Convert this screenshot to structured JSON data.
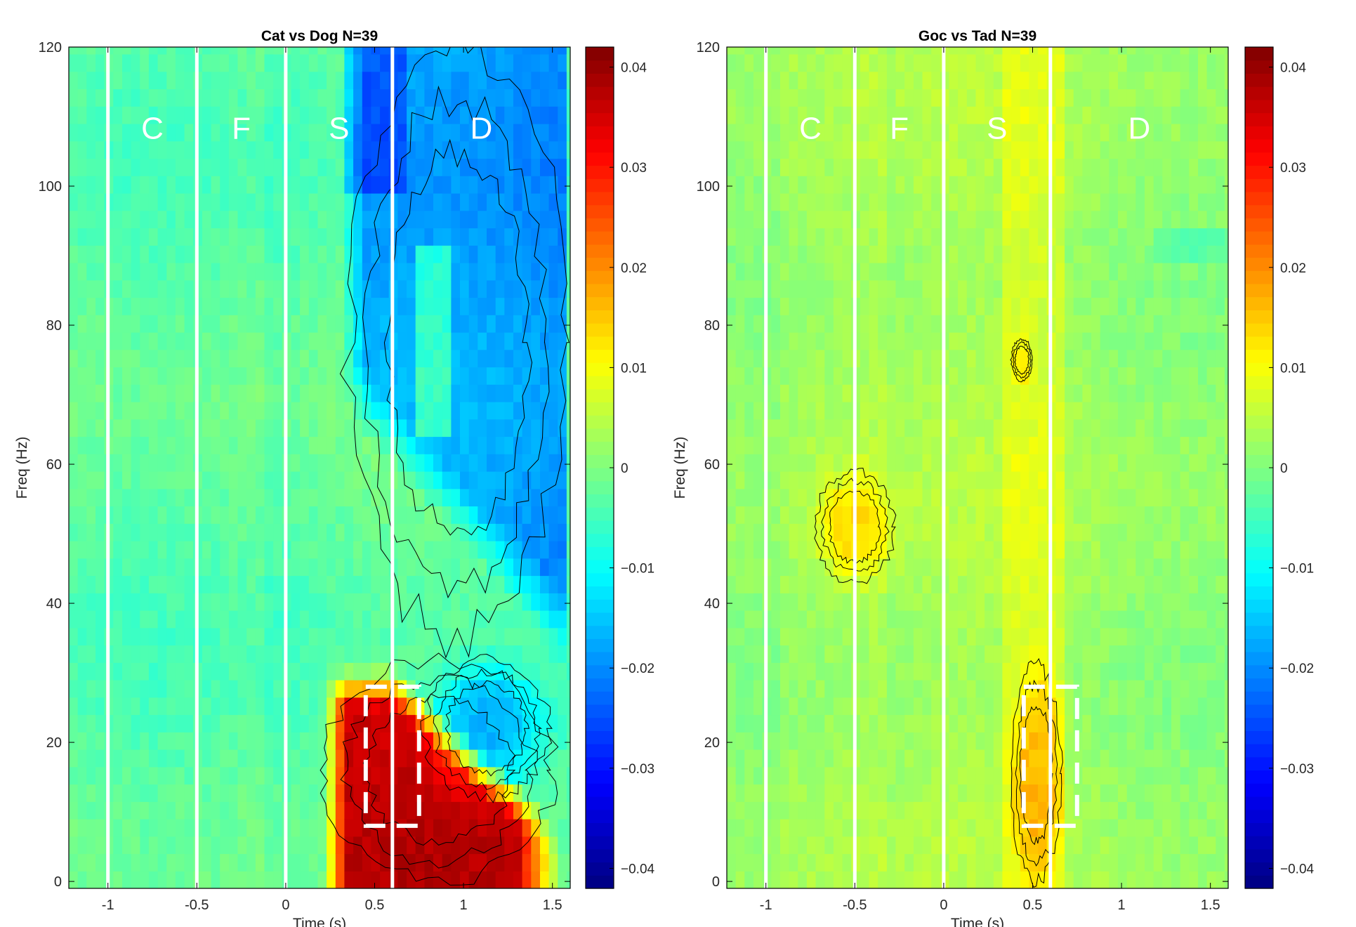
{
  "chart_data": [
    {
      "type": "heatmap",
      "title": "Cat vs Dog N=39",
      "xlabel": "Time (s)",
      "ylabel": "Freq (Hz)",
      "xlim": [
        -1.22,
        1.6
      ],
      "ylim": [
        -1,
        120
      ],
      "xticks": [
        -1,
        -0.5,
        0,
        0.5,
        1,
        1.5
      ],
      "xtick_labels": [
        "-1",
        "-0.5",
        "0",
        "0.5",
        "1",
        "1.5"
      ],
      "yticks": [
        0,
        20,
        40,
        60,
        80,
        100,
        120
      ],
      "ytick_labels": [
        "0",
        "20",
        "40",
        "60",
        "80",
        "100",
        "120"
      ],
      "vlines": [
        -1,
        -0.5,
        0,
        0.6
      ],
      "epoch_labels": [
        {
          "text": "C",
          "x": -0.75,
          "y": 108
        },
        {
          "text": "F",
          "x": -0.25,
          "y": 108
        },
        {
          "text": "S",
          "x": 0.3,
          "y": 108
        },
        {
          "text": "D",
          "x": 1.1,
          "y": 108
        }
      ],
      "roi_box": {
        "t0": 0.45,
        "t1": 0.75,
        "f0": 8,
        "f1": 28
      },
      "clusters": [
        {
          "label": "high-gamma decrease",
          "t0": 0.35,
          "t1": 1.58,
          "f0": 35,
          "f1": 120,
          "peak": -0.02
        },
        {
          "label": "beta decrease",
          "t0": 0.78,
          "t1": 1.48,
          "f0": 12,
          "f1": 32,
          "peak": -0.016
        },
        {
          "label": "low-frequency increase",
          "t0": 0.22,
          "t1": 1.5,
          "f0": 0,
          "f1": 32,
          "peak": 0.04
        }
      ],
      "colorbar": {
        "min": -0.042,
        "max": 0.042,
        "ticks": [
          0.04,
          0.03,
          0.02,
          0.01,
          0,
          -0.01,
          -0.02,
          -0.03,
          -0.04
        ],
        "tick_labels": [
          "0.04",
          "0.03",
          "0.02",
          "0.01",
          "0",
          "−0.01",
          "−0.02",
          "−0.03",
          "−0.04"
        ]
      }
    },
    {
      "type": "heatmap",
      "title": "Goc vs Tad N=39",
      "xlabel": "Time (s)",
      "ylabel": "Freq (Hz)",
      "xlim": [
        -1.22,
        1.6
      ],
      "ylim": [
        -1,
        120
      ],
      "xticks": [
        -1,
        -0.5,
        0,
        0.5,
        1,
        1.5
      ],
      "xtick_labels": [
        "-1",
        "-0.5",
        "0",
        "0.5",
        "1",
        "1.5"
      ],
      "yticks": [
        0,
        20,
        40,
        60,
        80,
        100,
        120
      ],
      "ytick_labels": [
        "0",
        "20",
        "40",
        "60",
        "80",
        "100",
        "120"
      ],
      "vlines": [
        -1,
        -0.5,
        0,
        0.6
      ],
      "epoch_labels": [
        {
          "text": "C",
          "x": -0.75,
          "y": 108
        },
        {
          "text": "F",
          "x": -0.25,
          "y": 108
        },
        {
          "text": "S",
          "x": 0.3,
          "y": 108
        },
        {
          "text": "D",
          "x": 1.1,
          "y": 108
        }
      ],
      "roi_box": {
        "t0": 0.45,
        "t1": 0.75,
        "f0": 8,
        "f1": 28
      },
      "clusters": [
        {
          "label": "gamma increase",
          "t0": -0.72,
          "t1": -0.28,
          "f0": 43,
          "f1": 59,
          "peak": 0.011
        },
        {
          "label": "beta increase",
          "t0": 0.38,
          "t1": 0.66,
          "f0": 0,
          "f1": 31,
          "peak": 0.01
        },
        {
          "label": "small increase",
          "t0": 0.38,
          "t1": 0.5,
          "f0": 72,
          "f1": 78,
          "peak": 0.008
        }
      ],
      "colorbar": {
        "min": -0.042,
        "max": 0.042,
        "ticks": [
          0.04,
          0.03,
          0.02,
          0.01,
          0,
          -0.01,
          -0.02,
          -0.03,
          -0.04
        ],
        "tick_labels": [
          "0.04",
          "0.03",
          "0.02",
          "0.01",
          "0",
          "−0.01",
          "−0.02",
          "−0.03",
          "−0.04"
        ]
      }
    }
  ]
}
